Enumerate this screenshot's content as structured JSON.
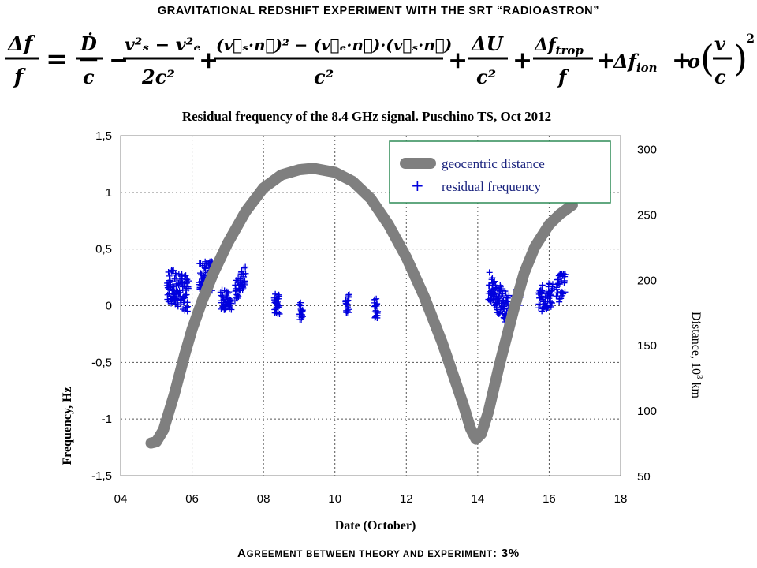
{
  "slide": {
    "title": "GRAVITATIONAL REDSHIFT EXPERIMENT WITH THE SRT “RADIOASTRON”",
    "footer": "Agreement between theory and experiment: 3%"
  },
  "colors": {
    "points": "#0000dd",
    "distance_line": "#7f7f7f",
    "legend_border": "#2e8b57",
    "grid": "#555555"
  },
  "chart_data": {
    "type": "scatter",
    "title": "Residual frequency of the 8.4 GHz signal. Puschino TS, Oct 2012",
    "xlabel": "Date (October)",
    "ylabel": "Frequency, Hz",
    "y2label": "Distance, 10^3 km",
    "x_ticks": [
      "04",
      "06",
      "08",
      "10",
      "12",
      "14",
      "16",
      "18"
    ],
    "y_ticks": [
      "-1,5",
      "-1",
      "-0,5",
      "0",
      "0,5",
      "1",
      "1,5"
    ],
    "y2_ticks": [
      "50",
      "100",
      "150",
      "200",
      "250",
      "300"
    ],
    "xlim": [
      4,
      18
    ],
    "ylim": [
      -1.5,
      1.5
    ],
    "y2lim": [
      50,
      310
    ],
    "grid": true,
    "legend_position": "top-right",
    "legend": [
      "geocentric distance",
      "residual frequency"
    ],
    "series": [
      {
        "name": "geocentric distance",
        "axis": "right",
        "style": "thick-line",
        "x": [
          4.85,
          5.0,
          5.2,
          5.5,
          5.8,
          6.0,
          6.3,
          6.6,
          7.0,
          7.5,
          8.0,
          8.5,
          9.0,
          9.4,
          10.0,
          10.5,
          11.0,
          11.5,
          12.0,
          12.5,
          13.0,
          13.3,
          13.6,
          13.8,
          13.95,
          14.1,
          14.3,
          14.6,
          15.0,
          15.3,
          15.6,
          16.0,
          16.3,
          16.65
        ],
        "values": [
          75,
          76,
          85,
          112,
          143,
          162,
          185,
          205,
          228,
          252,
          270,
          280,
          284,
          285,
          282,
          275,
          262,
          242,
          217,
          187,
          152,
          128,
          104,
          86,
          78,
          82,
          99,
          134,
          176,
          205,
          225,
          242,
          250,
          257
        ]
      },
      {
        "name": "residual frequency",
        "axis": "left",
        "style": "plus-markers",
        "clusters": [
          {
            "x_start": 5.3,
            "x_end": 5.9,
            "y_start": 0.18,
            "y_end": 0.1,
            "spread": 0.16,
            "n": 110
          },
          {
            "x_start": 6.2,
            "x_end": 6.6,
            "y_start": 0.28,
            "y_end": 0.25,
            "spread": 0.14,
            "n": 80
          },
          {
            "x_start": 6.8,
            "x_end": 7.1,
            "y_start": 0.05,
            "y_end": 0.05,
            "spread": 0.09,
            "n": 40
          },
          {
            "x_start": 7.2,
            "x_end": 7.5,
            "y_start": 0.13,
            "y_end": 0.26,
            "spread": 0.1,
            "n": 40
          },
          {
            "x_start": 8.3,
            "x_end": 8.45,
            "y_start": 0.01,
            "y_end": 0.01,
            "spread": 0.1,
            "n": 30
          },
          {
            "x_start": 9.0,
            "x_end": 9.1,
            "y_start": -0.05,
            "y_end": -0.05,
            "spread": 0.08,
            "n": 20
          },
          {
            "x_start": 10.3,
            "x_end": 10.4,
            "y_start": 0.02,
            "y_end": 0.02,
            "spread": 0.08,
            "n": 20
          },
          {
            "x_start": 11.1,
            "x_end": 11.2,
            "y_start": -0.02,
            "y_end": -0.02,
            "spread": 0.09,
            "n": 20
          },
          {
            "x_start": 14.3,
            "x_end": 14.95,
            "y_start": 0.18,
            "y_end": -0.08,
            "spread": 0.14,
            "n": 120
          },
          {
            "x_start": 15.0,
            "x_end": 15.2,
            "y_start": 0.0,
            "y_end": 0.12,
            "spread": 0.1,
            "n": 30
          },
          {
            "x_start": 15.7,
            "x_end": 16.1,
            "y_start": 0.05,
            "y_end": 0.1,
            "spread": 0.12,
            "n": 60
          },
          {
            "x_start": 16.2,
            "x_end": 16.45,
            "y_start": 0.12,
            "y_end": 0.22,
            "spread": 0.12,
            "n": 35
          }
        ]
      }
    ]
  }
}
